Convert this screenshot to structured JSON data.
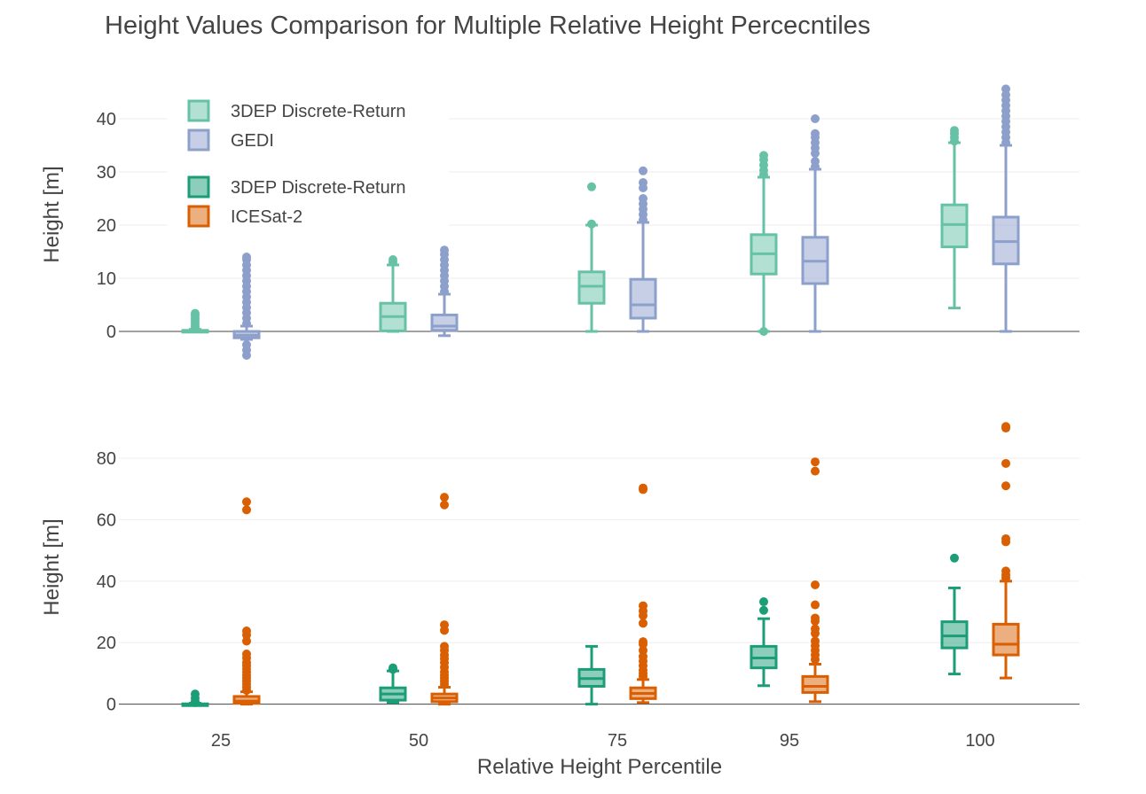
{
  "chart_data": {
    "type": "box",
    "title": "Height Values Comparison for Multiple Relative Height Percecntiles",
    "xlabel": "Relative Height Percentile",
    "categories": [
      "25",
      "50",
      "75",
      "95",
      "100"
    ],
    "colors": {
      "dep_gedi": "#66c2a5",
      "gedi": "#8da0cb",
      "dep_icesat": "#1b9e77",
      "icesat": "#d95f02"
    },
    "panels": [
      {
        "ylabel": "Height [m]",
        "ylim": [
          -6,
          47
        ],
        "yticks": [
          0,
          10,
          20,
          30,
          40
        ],
        "legend": [
          "3DEP Discrete-Return",
          "GEDI"
        ],
        "series": [
          {
            "name": "3DEP Discrete-Return",
            "color_key": "dep_gedi",
            "boxes": [
              {
                "lf": 0,
                "q1": 0,
                "median": 0.1,
                "q3": 0.2,
                "uf": 0.4,
                "outliers": [
                  0.6,
                  1.0,
                  1.5,
                  2.0,
                  2.5,
                  3.0,
                  3.4
                ]
              },
              {
                "lf": 0,
                "q1": 0.1,
                "median": 2.8,
                "q3": 5.3,
                "uf": 12.5,
                "outliers": [
                  13.0,
                  13.5
                ]
              },
              {
                "lf": 0,
                "q1": 5.3,
                "median": 8.5,
                "q3": 11.2,
                "uf": 20.0,
                "outliers": [
                  20.2,
                  27.2
                ]
              },
              {
                "lf": 0,
                "q1": 10.8,
                "median": 14.6,
                "q3": 18.2,
                "uf": 29.0,
                "outliers": [
                  0,
                  29.5,
                  30.3,
                  31.3,
                  32.3,
                  33.1
                ]
              },
              {
                "lf": 4.4,
                "q1": 15.9,
                "median": 20.1,
                "q3": 23.8,
                "uf": 35.5,
                "outliers": [
                  35.8,
                  36.5,
                  37.2,
                  37.8
                ]
              }
            ]
          },
          {
            "name": "GEDI",
            "color_key": "gedi",
            "boxes": [
              {
                "lf": -1.5,
                "q1": -1.2,
                "median": -0.7,
                "q3": 0,
                "uf": 1.0,
                "outliers": [
                  -4.5,
                  -3.5,
                  -2.5,
                  1.5,
                  2.5,
                  3.5,
                  4.5,
                  5.5,
                  6.5,
                  7.5,
                  8.5,
                  9.5,
                  10.5,
                  11.5,
                  12.5,
                  13.5,
                  14.0
                ]
              },
              {
                "lf": -0.8,
                "q1": 0.2,
                "median": 1.0,
                "q3": 3.1,
                "uf": 7.0,
                "outliers": [
                  7.5,
                  8.5,
                  9.5,
                  10.5,
                  11.5,
                  12.5,
                  13.5,
                  14.5,
                  15.3
                ]
              },
              {
                "lf": 0,
                "q1": 2.5,
                "median": 5.0,
                "q3": 9.8,
                "uf": 20.5,
                "outliers": [
                  21.0,
                  22.0,
                  23.0,
                  24.0,
                  25.0,
                  27.0,
                  28.0,
                  30.2
                ]
              },
              {
                "lf": 0,
                "q1": 9.0,
                "median": 13.2,
                "q3": 17.7,
                "uf": 30.5,
                "outliers": [
                  31.0,
                  32.0,
                  33.5,
                  34.5,
                  35.5,
                  36.5,
                  37.2,
                  40.0
                ]
              },
              {
                "lf": 0,
                "q1": 12.7,
                "median": 16.9,
                "q3": 21.5,
                "uf": 35.0,
                "outliers": [
                  35.5,
                  36.5,
                  37.5,
                  38.5,
                  39.5,
                  40.5,
                  41.5,
                  42.5,
                  43.5,
                  44.5,
                  45.6
                ]
              }
            ]
          }
        ]
      },
      {
        "ylabel": "Height [m]",
        "ylim": [
          -3,
          95
        ],
        "yticks": [
          0,
          20,
          40,
          60,
          80
        ],
        "legend": [
          "3DEP Discrete-Return",
          "ICESat-2"
        ],
        "series": [
          {
            "name": "3DEP Discrete-Return",
            "color_key": "dep_icesat",
            "boxes": [
              {
                "lf": 0,
                "q1": 0,
                "median": 0,
                "q3": 0.1,
                "uf": 0.3,
                "outliers": [
                  0.5,
                  1.0,
                  2.0,
                  3.3
                ]
              },
              {
                "lf": 0.5,
                "q1": 1.3,
                "median": 3.3,
                "q3": 5.3,
                "uf": 10.8,
                "outliers": [
                  11.3,
                  11.8
                ]
              },
              {
                "lf": 0,
                "q1": 5.8,
                "median": 8.3,
                "q3": 11.3,
                "uf": 18.8,
                "outliers": []
              },
              {
                "lf": 6.0,
                "q1": 11.8,
                "median": 15.0,
                "q3": 18.8,
                "uf": 27.8,
                "outliers": [
                  30.5,
                  33.3
                ]
              },
              {
                "lf": 9.8,
                "q1": 18.3,
                "median": 22.2,
                "q3": 26.8,
                "uf": 37.8,
                "outliers": [
                  47.5
                ]
              }
            ]
          },
          {
            "name": "ICESat-2",
            "color_key": "icesat",
            "boxes": [
              {
                "lf": 0,
                "q1": 0.3,
                "median": 1.0,
                "q3": 2.5,
                "uf": 4.0,
                "outliers": [
                  4.5,
                  5.5,
                  6.5,
                  7.5,
                  8.5,
                  9.5,
                  10.5,
                  11.5,
                  12.5,
                  13.5,
                  15.0,
                  16.3,
                  20.5,
                  22.5,
                  23.8,
                  63.2,
                  65.8
                ]
              },
              {
                "lf": 0,
                "q1": 0.8,
                "median": 2.0,
                "q3": 3.3,
                "uf": 5.5,
                "outliers": [
                  6.5,
                  7.5,
                  8.5,
                  9.5,
                  10.5,
                  12.0,
                  13.5,
                  14.8,
                  16.0,
                  17.5,
                  18.8,
                  24.0,
                  25.8,
                  64.8,
                  67.3
                ]
              },
              {
                "lf": 0.5,
                "q1": 1.8,
                "median": 3.5,
                "q3": 5.3,
                "uf": 8.0,
                "outliers": [
                  9.0,
                  10.0,
                  11.0,
                  12.5,
                  14.0,
                  15.5,
                  17.5,
                  19.5,
                  20.3,
                  26.3,
                  28.8,
                  30.3,
                  32.0,
                  69.8,
                  70.3
                ]
              },
              {
                "lf": 0.8,
                "q1": 3.8,
                "median": 5.8,
                "q3": 9.0,
                "uf": 13.0,
                "outliers": [
                  14.5,
                  16.0,
                  17.5,
                  19.0,
                  20.5,
                  23.0,
                  24.5,
                  27.0,
                  28.0,
                  32.3,
                  38.8,
                  75.8,
                  78.8
                ]
              },
              {
                "lf": 8.5,
                "q1": 16.0,
                "median": 19.5,
                "q3": 26.0,
                "uf": 40.0,
                "outliers": [
                  41.0,
                  42.0,
                  43.3,
                  52.8,
                  53.8,
                  71.0,
                  78.3,
                  89.8,
                  90.3
                ]
              }
            ]
          }
        ]
      }
    ]
  }
}
